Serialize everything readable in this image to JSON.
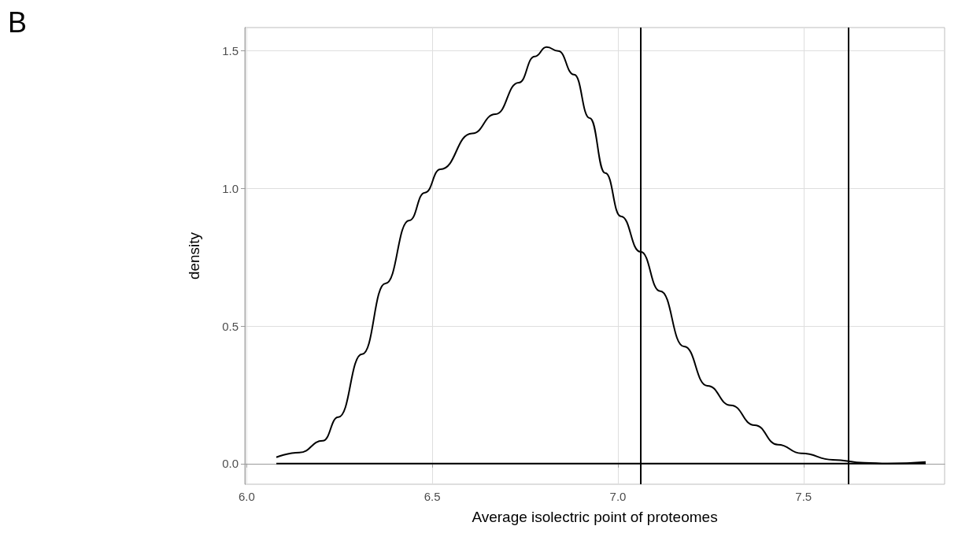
{
  "chart_data": {
    "type": "line",
    "xlabel": "Average isolectric point of proteomes",
    "ylabel": "density",
    "annotations": [
      "B"
    ],
    "series": [
      {
        "color": "#000000",
        "x": [
          6.08,
          6.142,
          6.205,
          6.247,
          6.311,
          6.374,
          6.438,
          6.48,
          6.522,
          6.607,
          6.67,
          6.733,
          6.776,
          6.808,
          6.839,
          6.882,
          6.924,
          6.966,
          7.008,
          7.061,
          7.114,
          7.178,
          7.241,
          7.304,
          7.368,
          7.431,
          7.495,
          7.579,
          7.664,
          7.727,
          7.829
        ],
        "values": [
          0.023,
          0.04,
          0.083,
          0.169,
          0.398,
          0.655,
          0.884,
          0.985,
          1.07,
          1.2,
          1.27,
          1.385,
          1.48,
          1.514,
          1.5,
          1.414,
          1.256,
          1.056,
          0.899,
          0.77,
          0.627,
          0.426,
          0.283,
          0.212,
          0.14,
          0.069,
          0.037,
          0.014,
          0.003,
          0,
          0.006
        ]
      },
      {
        "color": "#000000",
        "x": [
          6.08,
          7.829
        ],
        "values": [
          0,
          0
        ]
      }
    ],
    "xlim": [
      5.995,
      7.88
    ],
    "ylim": [
      -0.075,
      1.585
    ],
    "xticks": [
      {
        "value": 6,
        "label": "6.0"
      },
      6.5,
      {
        "value": 7,
        "label": "7.0"
      },
      7.5
    ],
    "yticks": [
      {
        "value": 0,
        "label": "0.0"
      },
      0.5,
      {
        "value": 1,
        "label": "1.0"
      },
      1.5
    ],
    "ref_lines": [
      {
        "axis": "x",
        "value": 7.061,
        "color": "#000000"
      },
      {
        "axis": "x",
        "value": 7.615,
        "color": "#000000"
      }
    ],
    "grid": true,
    "marker": "none",
    "line_style": "solid"
  }
}
